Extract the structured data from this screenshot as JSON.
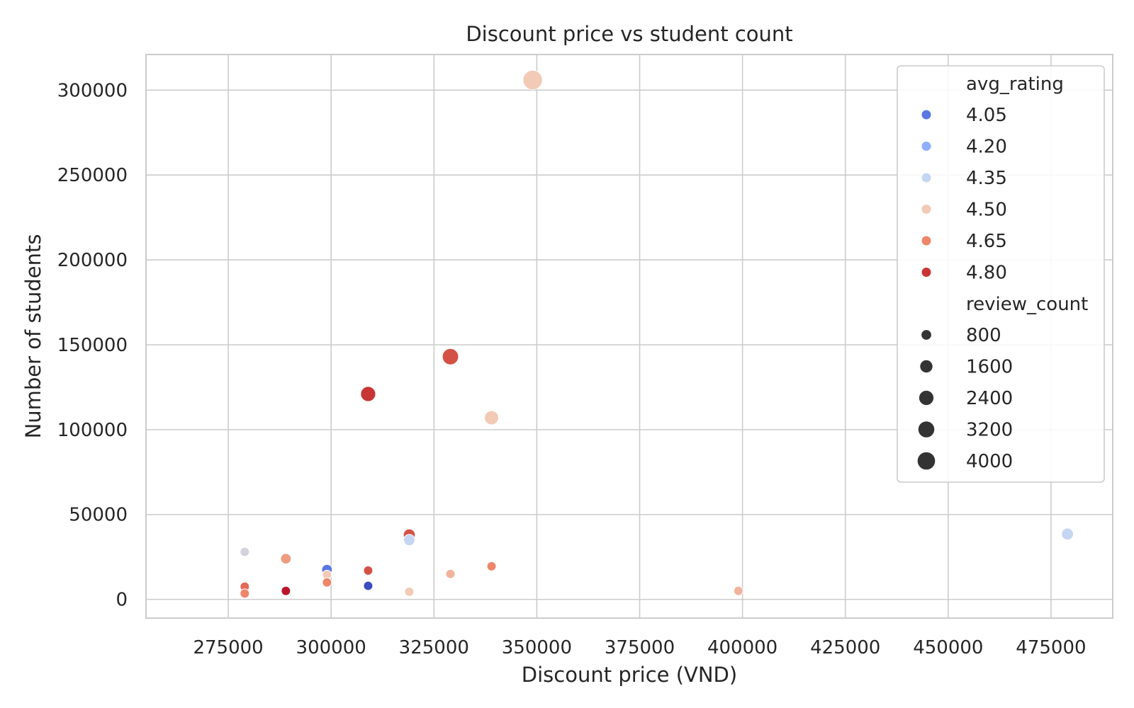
{
  "chart_data": {
    "type": "scatter",
    "title": "Discount price vs student count",
    "xlabel": "Discount price (VND)",
    "ylabel": "Number of students",
    "xlim": [
      255000,
      490000
    ],
    "ylim": [
      -11000,
      321000
    ],
    "xticks": [
      275000,
      300000,
      325000,
      350000,
      375000,
      400000,
      425000,
      450000,
      475000
    ],
    "yticks": [
      0,
      50000,
      100000,
      150000,
      200000,
      250000,
      300000
    ],
    "grid": true,
    "legend_position": "top-right",
    "hue_variable": "avg_rating",
    "size_variable": "review_count",
    "legend": {
      "hue_title": "avg_rating",
      "hue_entries": [
        {
          "label": "4.05",
          "color": "#5a78e4"
        },
        {
          "label": "4.20",
          "color": "#8daffd"
        },
        {
          "label": "4.35",
          "color": "#c5d6f2"
        },
        {
          "label": "4.50",
          "color": "#f2cab5"
        },
        {
          "label": "4.65",
          "color": "#ee8669"
        },
        {
          "label": "4.80",
          "color": "#c73635"
        }
      ],
      "size_title": "review_count",
      "size_entries": [
        {
          "label": "800",
          "value": 800
        },
        {
          "label": "1600",
          "value": 1600
        },
        {
          "label": "2400",
          "value": 2400
        },
        {
          "label": "3200",
          "value": 3200
        },
        {
          "label": "4000",
          "value": 4000
        }
      ]
    },
    "points": [
      {
        "x": 279000,
        "y": 28000,
        "avg_rating": 4.4,
        "review_count": 500
      },
      {
        "x": 279000,
        "y": 7500,
        "avg_rating": 4.7,
        "review_count": 500
      },
      {
        "x": 279000,
        "y": 3500,
        "avg_rating": 4.65,
        "review_count": 500
      },
      {
        "x": 289000,
        "y": 24000,
        "avg_rating": 4.6,
        "review_count": 800
      },
      {
        "x": 289000,
        "y": 5000,
        "avg_rating": 4.9,
        "review_count": 500
      },
      {
        "x": 299000,
        "y": 17500,
        "avg_rating": 4.05,
        "review_count": 800
      },
      {
        "x": 299000,
        "y": 14500,
        "avg_rating": 4.5,
        "review_count": 500
      },
      {
        "x": 299000,
        "y": 10000,
        "avg_rating": 4.65,
        "review_count": 500
      },
      {
        "x": 309000,
        "y": 121000,
        "avg_rating": 4.8,
        "review_count": 2400
      },
      {
        "x": 309000,
        "y": 17000,
        "avg_rating": 4.75,
        "review_count": 500
      },
      {
        "x": 309000,
        "y": 8000,
        "avg_rating": 3.95,
        "review_count": 500
      },
      {
        "x": 319000,
        "y": 38000,
        "avg_rating": 4.75,
        "review_count": 1200
      },
      {
        "x": 319000,
        "y": 35000,
        "avg_rating": 4.35,
        "review_count": 1000
      },
      {
        "x": 319000,
        "y": 4500,
        "avg_rating": 4.5,
        "review_count": 500
      },
      {
        "x": 329000,
        "y": 143000,
        "avg_rating": 4.75,
        "review_count": 3000
      },
      {
        "x": 329000,
        "y": 15000,
        "avg_rating": 4.55,
        "review_count": 500
      },
      {
        "x": 339000,
        "y": 107000,
        "avg_rating": 4.5,
        "review_count": 2000
      },
      {
        "x": 339000,
        "y": 19500,
        "avg_rating": 4.65,
        "review_count": 500
      },
      {
        "x": 349000,
        "y": 306000,
        "avg_rating": 4.5,
        "review_count": 4800
      },
      {
        "x": 399000,
        "y": 5000,
        "avg_rating": 4.55,
        "review_count": 500
      },
      {
        "x": 479000,
        "y": 38500,
        "avg_rating": 4.35,
        "review_count": 1200
      }
    ]
  }
}
